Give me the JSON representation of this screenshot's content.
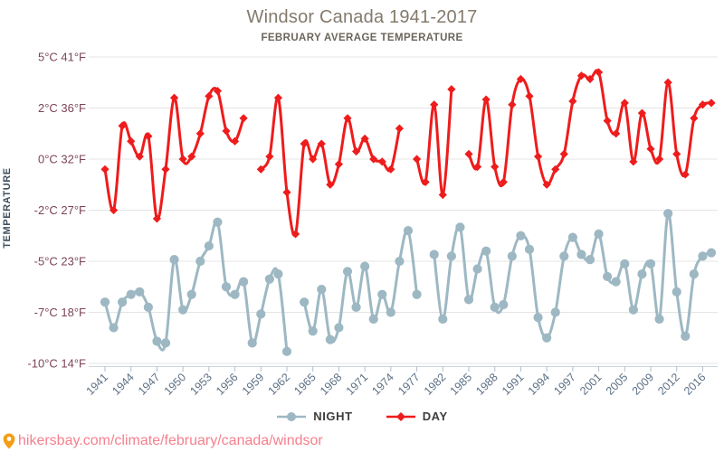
{
  "title": {
    "text": "Windsor Canada 1941-2017",
    "subtitle": "FEBRUARY AVERAGE TEMPERATURE"
  },
  "y_axis": {
    "title": "TEMPERATURE",
    "ticks": [
      {
        "label": "5°C 41°F",
        "value": 5
      },
      {
        "label": "2°C 36°F",
        "value": 2
      },
      {
        "label": "0°C 32°F",
        "value": 0
      },
      {
        "label": "-2°C 27°F",
        "value": -2
      },
      {
        "label": "-5°C 23°F",
        "value": -5
      },
      {
        "label": "-7°C 18°F",
        "value": -7
      },
      {
        "label": "-10°C 14°F",
        "value": -10
      }
    ],
    "label_color": "#7d4557"
  },
  "x_axis": {
    "labels": [
      "1941",
      "1944",
      "1947",
      "1950",
      "1953",
      "1956",
      "1959",
      "1962",
      "1965",
      "1968",
      "1971",
      "1974",
      "1977",
      "1982",
      "1985",
      "1988",
      "1991",
      "1994",
      "1997",
      "2001",
      "2005",
      "2009",
      "2012",
      "2016"
    ],
    "label_every_n_points": 3,
    "label_color": "#5c7084"
  },
  "legend": {
    "items": [
      {
        "label": "NIGHT",
        "marker": "circle",
        "color": "#9db8c3"
      },
      {
        "label": "DAY",
        "marker": "diamond",
        "color": "#ee1c1c"
      }
    ]
  },
  "footer": {
    "url": "hikersbay.com/climate/february/canada/windsor",
    "pin_color": "#f49d15",
    "text_color": "#f5808e"
  },
  "chart_data": {
    "type": "line",
    "title": "Windsor Canada 1941-2017",
    "subtitle": "FEBRUARY AVERAGE TEMPERATURE",
    "ylabel": "TEMPERATURE",
    "grid": "horizontal-only",
    "legend_position": "bottom",
    "y_tick_values": [
      5,
      2,
      0,
      -2,
      -5,
      -7,
      -10
    ],
    "x": [
      1941,
      1942,
      1943,
      1944,
      1945,
      1946,
      1947,
      1948,
      1949,
      1950,
      1951,
      1952,
      1953,
      1954,
      1955,
      1956,
      1957,
      1958,
      1959,
      1960,
      1961,
      1962,
      1963,
      1964,
      1965,
      1966,
      1967,
      1968,
      1969,
      1970,
      1971,
      1972,
      1973,
      1974,
      1975,
      1976,
      1977,
      1978,
      1979,
      1982,
      1983,
      1984,
      1985,
      1986,
      1987,
      1988,
      1989,
      1990,
      1991,
      1992,
      1993,
      1994,
      1995,
      1996,
      1997,
      1998,
      1999,
      2001,
      2002,
      2003,
      2005,
      2006,
      2007,
      2009,
      2010,
      2011,
      2012,
      2013,
      2014,
      2016,
      2017
    ],
    "series": [
      {
        "name": "NIGHT",
        "color": "#9db8c3",
        "marker": "circle",
        "values": [
          -6.6,
          -7.9,
          -6.6,
          -6.3,
          -6.2,
          -6.8,
          -8.7,
          -8.8,
          -4.9,
          -6.9,
          -6.3,
          -5.0,
          -4.1,
          -2.7,
          -6.0,
          -6.3,
          -5.8,
          -8.8,
          -7.1,
          -5.7,
          -5.5,
          -9.3,
          null,
          -6.6,
          -8.1,
          -6.1,
          -8.6,
          -7.9,
          -5.4,
          -6.8,
          -5.2,
          -7.4,
          -6.3,
          -7.0,
          -5.0,
          -3.2,
          -6.3,
          null,
          -4.6,
          -7.4,
          -4.7,
          -3.0,
          -6.5,
          -5.3,
          -4.4,
          -6.8,
          -6.7,
          -4.7,
          -3.5,
          -4.3,
          -7.3,
          -8.5,
          -7.0,
          -4.7,
          -3.6,
          -4.6,
          -4.9,
          -3.4,
          -5.6,
          -5.8,
          -5.1,
          -6.9,
          -5.5,
          -5.1,
          -7.4,
          -2.2,
          -6.2,
          -8.4,
          -5.5,
          -4.7,
          -4.5
        ]
      },
      {
        "name": "DAY",
        "color": "#ee1c1c",
        "marker": "diamond",
        "values": [
          -0.4,
          -2.0,
          1.3,
          0.7,
          0.1,
          0.9,
          -2.5,
          -0.4,
          2.6,
          0.0,
          0.1,
          1.0,
          2.7,
          3.0,
          1.1,
          0.7,
          1.6,
          null,
          -0.4,
          0.1,
          2.6,
          -1.3,
          -3.4,
          0.6,
          0.0,
          0.6,
          -1.0,
          -0.2,
          1.6,
          0.3,
          0.8,
          0.0,
          -0.1,
          -0.4,
          1.2,
          null,
          0.0,
          -0.9,
          2.2,
          -1.4,
          3.1,
          null,
          0.2,
          -0.3,
          2.5,
          -0.3,
          -0.9,
          2.2,
          3.7,
          2.7,
          0.1,
          -1.0,
          -0.4,
          0.2,
          2.4,
          3.9,
          3.7,
          4.1,
          1.5,
          1.0,
          2.3,
          -0.1,
          1.8,
          0.4,
          0.0,
          3.5,
          0.2,
          -0.6,
          1.6,
          2.2,
          2.3
        ]
      }
    ]
  }
}
